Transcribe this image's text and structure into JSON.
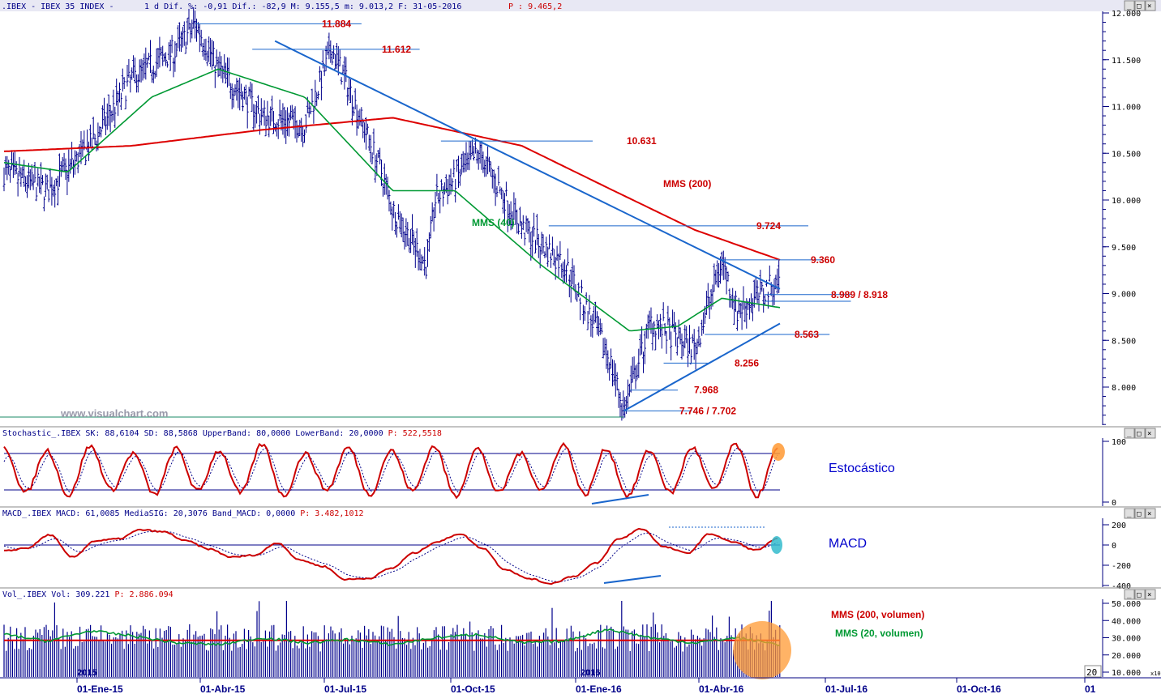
{
  "header": {
    "title": ".IBEX - IBEX 35 INDEX -",
    "rest": "1 d Dif. %: -0,91 Dif.: -82,9 M: 9.155,5 m: 9.013,2 F: 31-05-2016",
    "p_label": "P : 9.465,2"
  },
  "watermark": "www.visualchart.com",
  "window_buttons": [
    "_",
    "□",
    "×"
  ],
  "price_panel": {
    "y_ticks": [
      "12.000",
      "11.500",
      "11.000",
      "10.500",
      "10.000",
      "9.500",
      "9.000",
      "8.500",
      "8.000"
    ],
    "levels": [
      "11.884",
      "11.612",
      "10.631",
      "9.724",
      "9.360",
      "8.989 / 8.918",
      "8.563",
      "8.256",
      "7.968",
      "7.746 / 7.702"
    ],
    "ma_labels": [
      "MMS (200)",
      "MMS (40)"
    ]
  },
  "stoch_panel": {
    "header_black": "Stochastic_.IBEX SK: 88,6104 SD: 88,5868 UpperBand: 80,0000 LowerBand: 20,0000",
    "header_red": "P: 522,5518",
    "y_ticks": [
      "100",
      "0"
    ],
    "label": "Estocástico"
  },
  "macd_panel": {
    "header_black": "MACD_.IBEX MACD: 61,0085 MediaSIG: 20,3076 Band_MACD: 0,0000",
    "header_red": "P: 3.482,1012",
    "y_ticks": [
      "200",
      "0",
      "-200",
      "-400"
    ],
    "label": "MACD"
  },
  "vol_panel": {
    "header_black": "Vol_.IBEX Vol: 309.221",
    "header_red": "P: 2.886.094",
    "y_ticks": [
      "50.000",
      "40.000",
      "30.000",
      "20.000",
      "10.000"
    ],
    "labels": [
      "MMS (200, volumen)",
      "MMS (20, volumen)"
    ],
    "year_labels": [
      "2015",
      "2016"
    ],
    "scale_note": "20",
    "x10": "x10"
  },
  "x_axis": [
    "01-Ene-15",
    "01-Abr-15",
    "01-Jul-15",
    "01-Oct-15",
    "01-Ene-16",
    "01-Abr-16",
    "01-Jul-16",
    "01-Oct-16",
    "01"
  ],
  "colors": {
    "bars": "#00008b",
    "mms200": "#dd0000",
    "mms40": "#009933",
    "trendline": "#1a66cc",
    "levels": "#cc0000",
    "axis": "#000080",
    "header_bg": "#e8e8f4"
  },
  "chart_data": {
    "type": "ohlc",
    "title": "IBEX 35 INDEX",
    "price_ylim": [
      7500,
      12000
    ],
    "price_series": {
      "dates": [
        "2014-12-01",
        "2015-01-01",
        "2015-02-01",
        "2015-03-01",
        "2015-04-01",
        "2015-04-15",
        "2015-05-01",
        "2015-06-01",
        "2015-07-01",
        "2015-07-20",
        "2015-08-01",
        "2015-08-24",
        "2015-09-01",
        "2015-09-25",
        "2015-10-01",
        "2015-11-01",
        "2015-12-01",
        "2016-01-01",
        "2016-02-01",
        "2016-02-11",
        "2016-03-01",
        "2016-04-01",
        "2016-04-20",
        "2016-05-01",
        "2016-05-31"
      ],
      "close": [
        10300,
        10100,
        10600,
        11300,
        11600,
        11884,
        11400,
        10900,
        10800,
        11612,
        11200,
        10300,
        9900,
        9300,
        10000,
        10500,
        9700,
        9300,
        8300,
        7746,
        8700,
        8400,
        9360,
        8800,
        9155
      ]
    },
    "mms200": {
      "dates": [
        "2014-12-01",
        "2015-03-01",
        "2015-06-01",
        "2015-09-01",
        "2015-12-01",
        "2016-02-01",
        "2016-04-01",
        "2016-05-31"
      ],
      "values": [
        10520,
        10580,
        10750,
        10880,
        10580,
        10120,
        9680,
        9360
      ]
    },
    "mms40": {
      "dates": [
        "2014-12-01",
        "2015-01-15",
        "2015-03-15",
        "2015-05-01",
        "2015-07-01",
        "2015-09-01",
        "2015-10-15",
        "2015-12-15",
        "2016-02-15",
        "2016-03-20",
        "2016-04-20",
        "2016-05-31"
      ],
      "values": [
        10400,
        10300,
        11100,
        11400,
        11100,
        10100,
        10100,
        9300,
        8600,
        8650,
        8950,
        8850
      ]
    },
    "stochastic_bands": [
      20,
      80
    ],
    "stochastic_last": {
      "SK": 88.6104,
      "SD": 88.5868
    },
    "macd_last": {
      "MACD": 61.0085,
      "signal": 20.3076
    },
    "volume_last": 309221
  }
}
